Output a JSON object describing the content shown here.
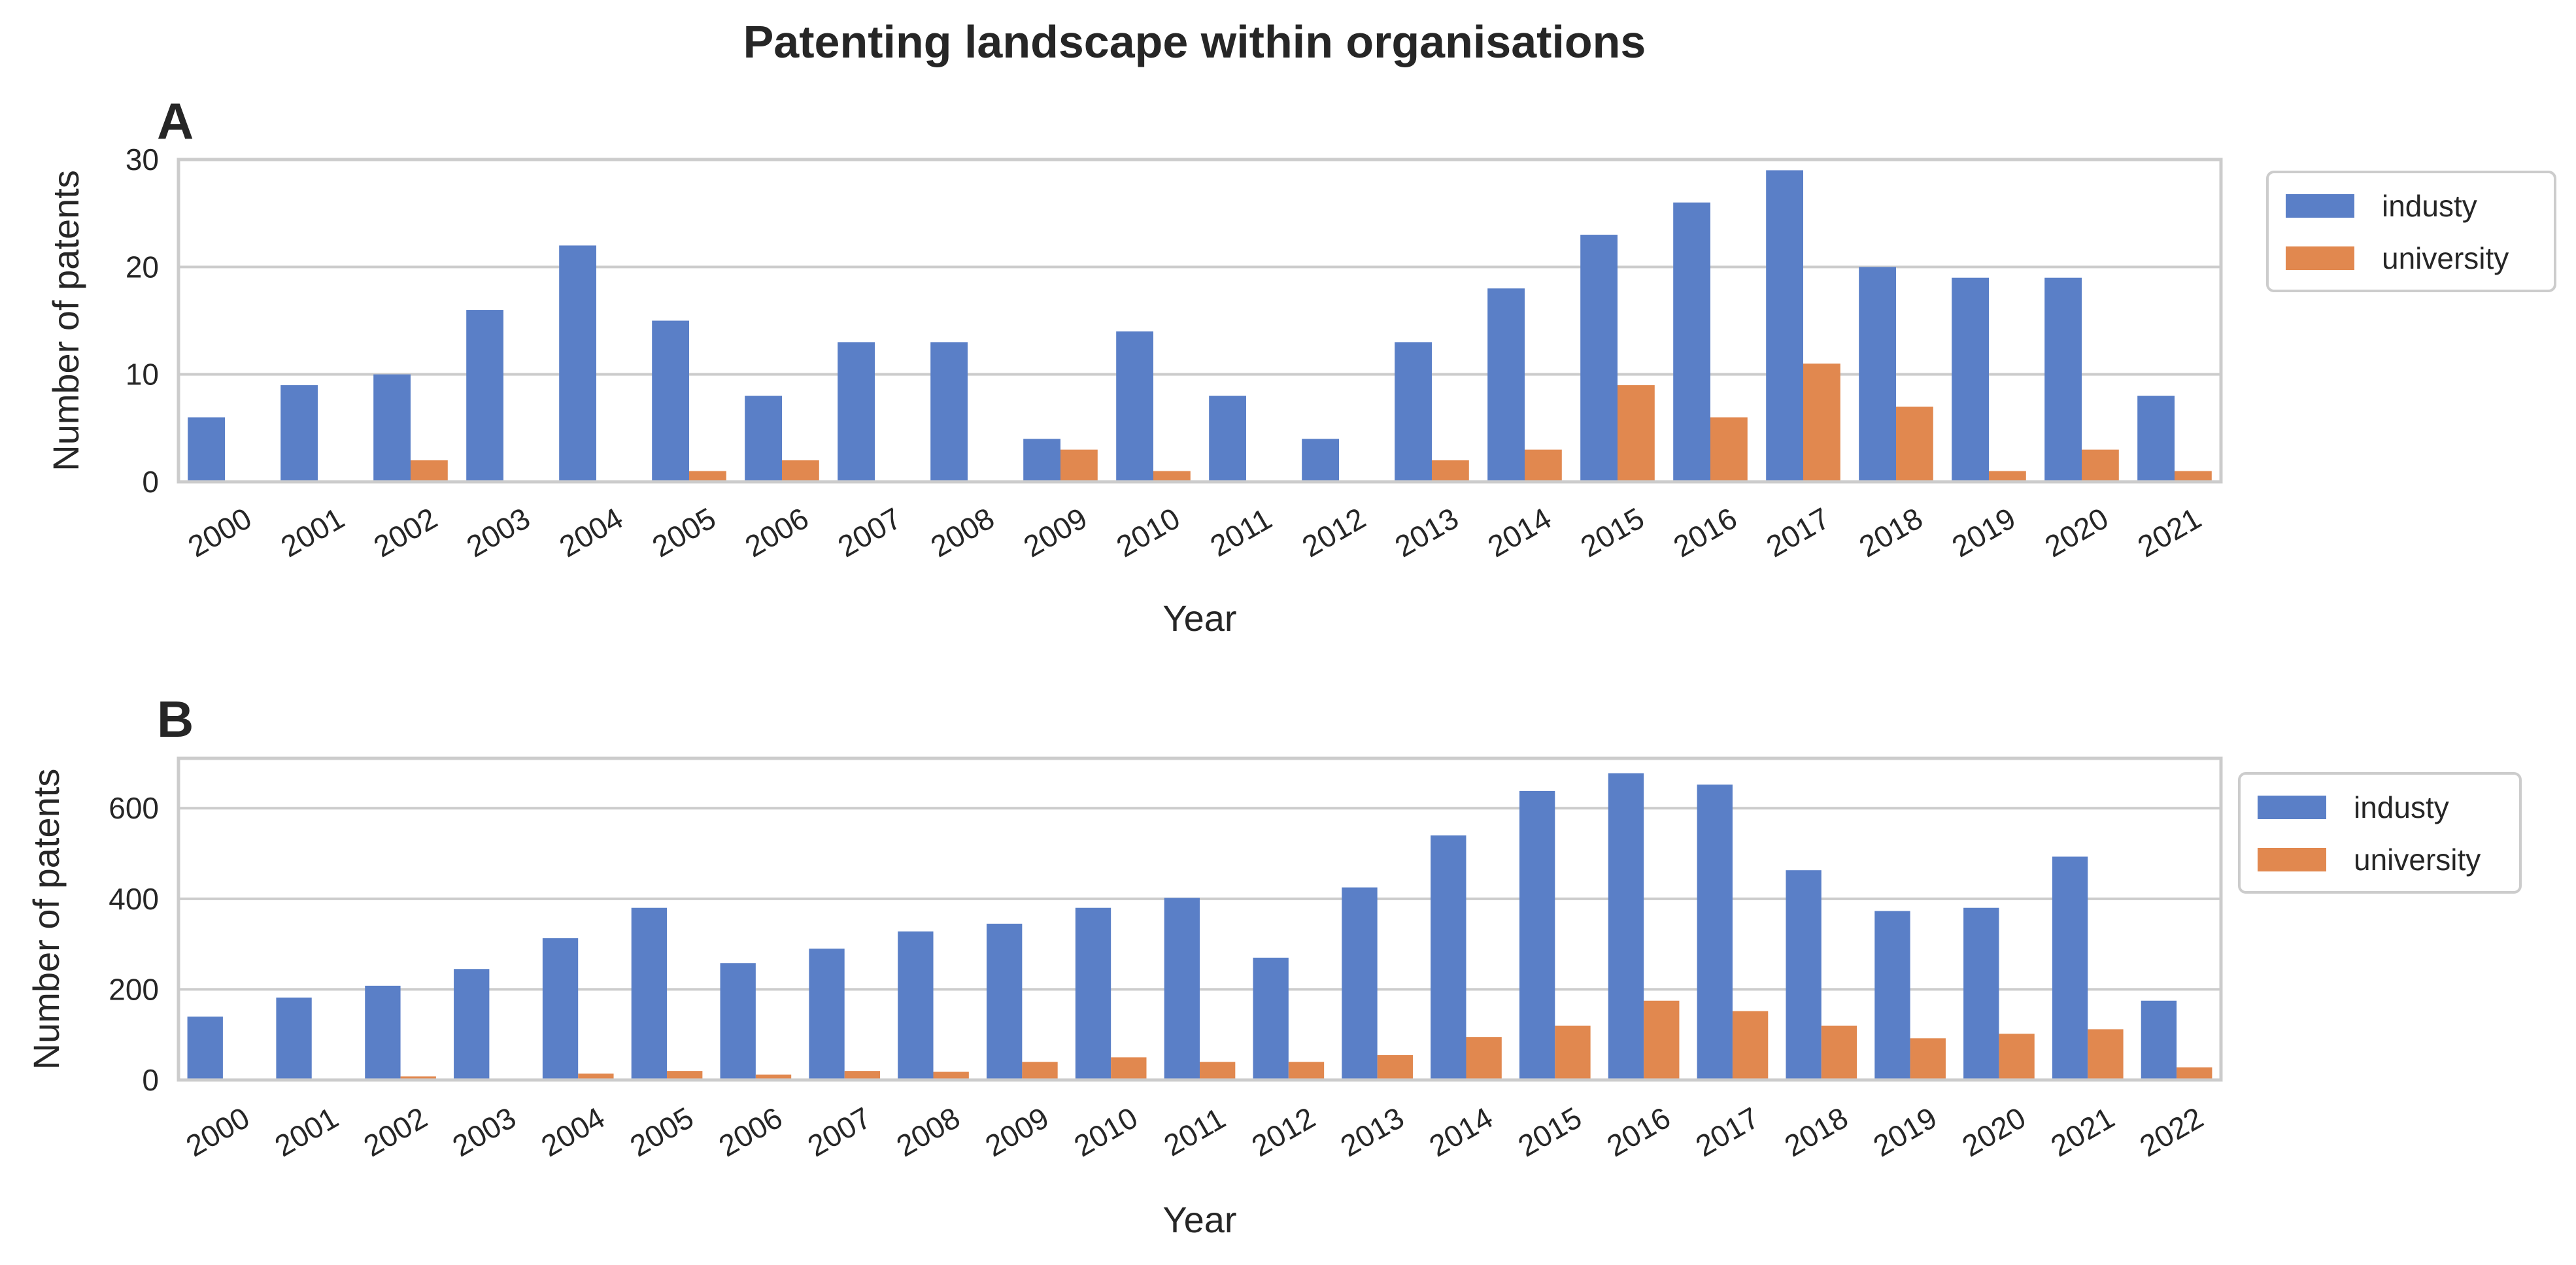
{
  "figure": {
    "title": "Patenting landscape within organisations"
  },
  "chart_data": [
    {
      "panel_label": "A",
      "type": "bar",
      "xlabel": "Year",
      "ylabel": "Number of patents",
      "ylim": [
        0,
        30
      ],
      "yticks": [
        0,
        10,
        20,
        30
      ],
      "grid": true,
      "legend_position": "outside-right-top",
      "categories": [
        "2000",
        "2001",
        "2002",
        "2003",
        "2004",
        "2005",
        "2006",
        "2007",
        "2008",
        "2009",
        "2010",
        "2011",
        "2012",
        "2013",
        "2014",
        "2015",
        "2016",
        "2017",
        "2018",
        "2019",
        "2020",
        "2021"
      ],
      "series": [
        {
          "name": "industy",
          "color": "#5a7fc7",
          "values": [
            6,
            9,
            10,
            16,
            22,
            15,
            8,
            13,
            13,
            4,
            14,
            8,
            4,
            13,
            18,
            23,
            26,
            29,
            20,
            19,
            19,
            8
          ]
        },
        {
          "name": "university",
          "color": "#e1884f",
          "values": [
            0,
            0,
            2,
            0,
            0,
            1,
            2,
            0,
            0,
            3,
            1,
            0,
            0,
            2,
            3,
            9,
            6,
            11,
            7,
            1,
            3,
            1
          ]
        }
      ]
    },
    {
      "panel_label": "B",
      "type": "bar",
      "xlabel": "Year",
      "ylabel": "Number of patents",
      "ylim": [
        0,
        710
      ],
      "yticks": [
        0,
        200,
        400,
        600
      ],
      "grid": true,
      "legend_position": "outside-right-top",
      "categories": [
        "2000",
        "2001",
        "2002",
        "2003",
        "2004",
        "2005",
        "2006",
        "2007",
        "2008",
        "2009",
        "2010",
        "2011",
        "2012",
        "2013",
        "2014",
        "2015",
        "2016",
        "2017",
        "2018",
        "2019",
        "2020",
        "2021",
        "2022"
      ],
      "series": [
        {
          "name": "industy",
          "color": "#5a7fc7",
          "values": [
            140,
            182,
            208,
            245,
            313,
            380,
            258,
            290,
            328,
            345,
            380,
            402,
            270,
            425,
            540,
            638,
            677,
            652,
            463,
            373,
            380,
            493,
            175
          ]
        },
        {
          "name": "university",
          "color": "#e1884f",
          "values": [
            2,
            2,
            8,
            2,
            14,
            20,
            12,
            20,
            18,
            40,
            50,
            40,
            40,
            55,
            95,
            120,
            175,
            152,
            120,
            92,
            102,
            112,
            28
          ]
        }
      ]
    }
  ]
}
